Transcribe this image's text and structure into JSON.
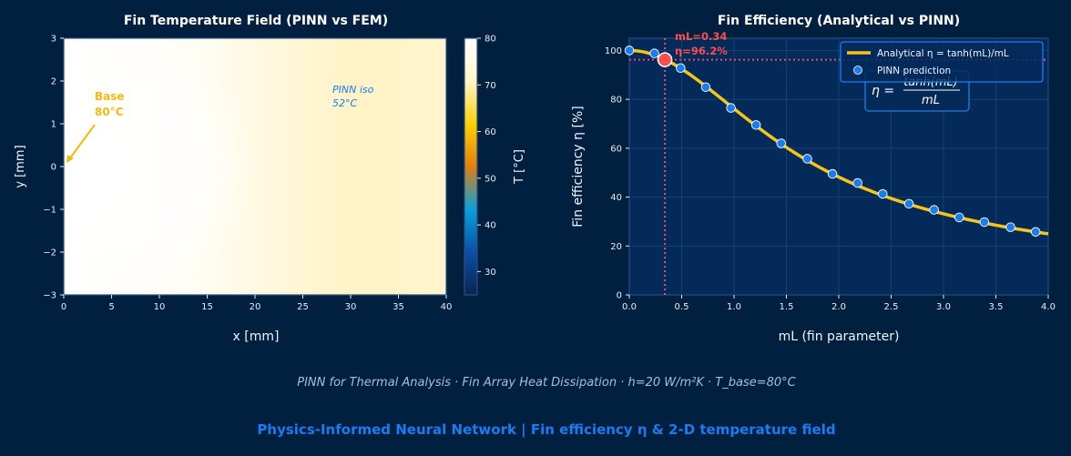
{
  "colors": {
    "background": "#011f3f",
    "plot_bg": "#042a5a",
    "accent_blue": "#1a7cf0",
    "curve_yellow": "#f5c518",
    "highlight_red": "#ff4d4d",
    "annotation_gold": "#f5b914"
  },
  "chart_data": [
    {
      "type": "heatmap",
      "title": "Fin Temperature Field  (PINN vs FEM)",
      "xlabel": "x [mm]",
      "ylabel": "y [mm]",
      "xlim": [
        0,
        40
      ],
      "ylim": [
        -3,
        3
      ],
      "xticks": [
        "0",
        "5",
        "10",
        "15",
        "20",
        "25",
        "30",
        "35",
        "40"
      ],
      "yticks": [
        "−3",
        "−2",
        "−1",
        "0",
        "1",
        "2",
        "3"
      ],
      "colorbar": {
        "label": "T [°C]",
        "range": [
          25,
          80
        ],
        "ticks": [
          "30",
          "40",
          "50",
          "60",
          "70",
          "80"
        ],
        "colormap": [
          "#0b2450",
          "#0a4fa8",
          "#0aa0d8",
          "#e07f10",
          "#ffd000",
          "#fff6c8",
          "#ffffff"
        ]
      },
      "annotations": [
        {
          "text_line1": "Base",
          "text_line2": "80°C",
          "arrow_to": [
            0,
            0
          ]
        },
        {
          "text_line1": "PINN iso",
          "text_line2": "52°C"
        }
      ]
    },
    {
      "type": "line",
      "title": "Fin Efficiency  (Analytical vs PINN)",
      "xlabel": "mL  (fin parameter)",
      "ylabel": "Fin efficiency η [%]",
      "xlim": [
        0,
        4
      ],
      "ylim": [
        0,
        105
      ],
      "grid": true,
      "xticks": [
        "0.0",
        "0.5",
        "1.0",
        "1.5",
        "2.0",
        "2.5",
        "3.0",
        "3.5",
        "4.0"
      ],
      "yticks": [
        "0",
        "20",
        "40",
        "60",
        "80",
        "100"
      ],
      "legend": {
        "placement": "top-right",
        "entries": [
          "Analytical  η = tanh(mL)/mL",
          "PINN prediction"
        ]
      },
      "formula": {
        "lhs": "η =",
        "numerator": "tanh(mL)",
        "denominator": "mL"
      },
      "series": [
        {
          "name": "Analytical  η = tanh(mL)/mL",
          "function": "tanh(mL)/mL"
        },
        {
          "name": "PINN prediction",
          "x": [
            0.0,
            0.24,
            0.49,
            0.73,
            0.97,
            1.21,
            1.45,
            1.7,
            1.94,
            2.18,
            2.42,
            2.67,
            2.91,
            3.15,
            3.39,
            3.64,
            3.88
          ],
          "y": [
            100,
            98.8,
            92.8,
            85.0,
            76.5,
            69.5,
            62.0,
            55.7,
            49.5,
            45.8,
            41.3,
            37.3,
            34.8,
            31.7,
            29.8,
            27.7,
            25.8
          ]
        }
      ],
      "highlight": {
        "x": 0.34,
        "y": 96.2,
        "label_line1": "mL=0.34",
        "label_line2": "η=96.2%"
      }
    }
  ],
  "footer": {
    "subtitle": "PINN for Thermal Analysis  ·  Fin Array Heat Dissipation  ·  h=20 W/m²K  ·  T_base=80°C",
    "headline": "Physics-Informed Neural Network  |  Fin efficiency η & 2-D temperature field"
  }
}
